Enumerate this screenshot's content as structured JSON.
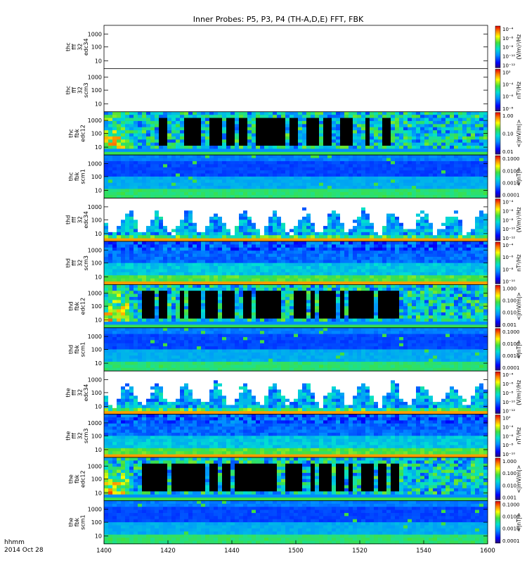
{
  "chart_data": {
    "type": "heatmap",
    "title": "Inner Probes: P5, P3, P4 (TH-A,D,E) FFT, FBK",
    "x_ticks": [
      "1400",
      "1420",
      "1440",
      "1500",
      "1520",
      "1540",
      "1600"
    ],
    "x_caption": [
      "hhmm",
      "2014 Oct 28"
    ],
    "log_y": true,
    "panels": [
      {
        "label": [
          "thc",
          "fff",
          "32",
          "edc34"
        ],
        "y_ticks": [
          "1000",
          "100",
          "10"
        ],
        "color_unit": "(V/m)²/Hz",
        "cbar_ticks": [
          "10⁻⁴",
          "10⁻⁶",
          "10⁻⁸",
          "10⁻¹⁰",
          "10⁻¹²"
        ],
        "style": "empty"
      },
      {
        "label": [
          "thc",
          "fff",
          "32",
          "scm3"
        ],
        "y_ticks": [
          "1000",
          "100",
          "10"
        ],
        "color_unit": "nT²/Hz",
        "cbar_ticks": [
          "10²",
          "10⁻⁴",
          "10⁻⁶",
          "10⁻⁸"
        ],
        "style": "empty"
      },
      {
        "label": [
          "thc",
          "fbk",
          "edc12"
        ],
        "y_ticks": [
          "1000",
          "100",
          "10"
        ],
        "color_unit": "<|mV/m|>",
        "cbar_ticks": [
          "1.00",
          "0.10",
          "0.01"
        ],
        "style": "edc12"
      },
      {
        "label": [
          "thc",
          "fbk",
          "scm1"
        ],
        "y_ticks": [
          "1000",
          "100",
          "10"
        ],
        "color_unit": "<|nT|>",
        "cbar_ticks": [
          "0.1000",
          "0.0100",
          "0.0010",
          "0.0001"
        ],
        "style": "scm1"
      },
      {
        "label": [
          "thd",
          "fff",
          "32",
          "edc34"
        ],
        "y_ticks": [
          "1000",
          "100",
          "10"
        ],
        "color_unit": "(V/m)²/Hz",
        "cbar_ticks": [
          "10⁻⁴",
          "10⁻⁶",
          "10⁻⁸",
          "10⁻¹⁰",
          "10⁻¹²"
        ],
        "style": "edc34"
      },
      {
        "label": [
          "thd",
          "fff",
          "32",
          "scm3"
        ],
        "y_ticks": [
          "1000",
          "100",
          "10"
        ],
        "color_unit": "nT²/Hz",
        "cbar_ticks": [
          "10⁻⁴",
          "10⁻⁶",
          "10⁻⁸",
          "10⁻¹⁰"
        ],
        "style": "scm3"
      },
      {
        "label": [
          "thd",
          "fbk",
          "edc12"
        ],
        "y_ticks": [
          "1000",
          "100",
          "10"
        ],
        "color_unit": "<|mV/m|>",
        "cbar_ticks": [
          "1.000",
          "0.100",
          "0.010",
          "0.001"
        ],
        "style": "edc12"
      },
      {
        "label": [
          "thd",
          "fbk",
          "scm1"
        ],
        "y_ticks": [
          "1000",
          "100",
          "10"
        ],
        "color_unit": "<|nT|>",
        "cbar_ticks": [
          "0.1000",
          "0.0100",
          "0.0010",
          "0.0001"
        ],
        "style": "scm1"
      },
      {
        "label": [
          "the",
          "fff",
          "32",
          "edc34"
        ],
        "y_ticks": [
          "1000",
          "100",
          "10"
        ],
        "color_unit": "(V/m)²/Hz",
        "cbar_ticks": [
          "10⁻⁴",
          "10⁻⁶",
          "10⁻⁸",
          "10⁻¹⁰",
          "10⁻¹²"
        ],
        "style": "edc34"
      },
      {
        "label": [
          "the",
          "fff",
          "32",
          "scm3"
        ],
        "y_ticks": [
          "1000",
          "100",
          "10"
        ],
        "color_unit": "nT²/Hz",
        "cbar_ticks": [
          "10²",
          "10⁻⁴",
          "10⁻⁶",
          "10⁻⁸",
          "10⁻¹⁰"
        ],
        "style": "scm3"
      },
      {
        "label": [
          "the",
          "fbk",
          "edc12"
        ],
        "y_ticks": [
          "1000",
          "100",
          "10"
        ],
        "color_unit": "<|mV/m|>",
        "cbar_ticks": [
          "1.000",
          "0.100",
          "0.010",
          "0.001"
        ],
        "style": "edc12"
      },
      {
        "label": [
          "the",
          "fbk",
          "scm1"
        ],
        "y_ticks": [
          "1000",
          "100",
          "10"
        ],
        "color_unit": "<|nT|>",
        "cbar_ticks": [
          "0.1000",
          "0.0100",
          "0.0010",
          "0.0001"
        ],
        "style": "scm1"
      }
    ]
  }
}
